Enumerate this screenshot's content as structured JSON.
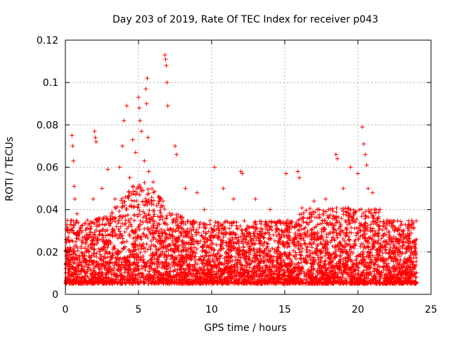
{
  "chart_data": {
    "type": "scatter",
    "title": "Day 203 of 2019, Rate Of TEC Index for receiver p043",
    "xlabel": "GPS time / hours",
    "ylabel": "ROTI / TECUs",
    "xlim": [
      0,
      25
    ],
    "ylim": [
      0,
      0.12
    ],
    "xticks": [
      "0",
      "5",
      "10",
      "15",
      "20",
      "25"
    ],
    "yticks": [
      "0",
      "0.02",
      "0.04",
      "0.06",
      "0.08",
      "0.1",
      "0.12"
    ],
    "xtick_values": [
      0,
      5,
      10,
      15,
      20,
      25
    ],
    "ytick_values": [
      0,
      0.02,
      0.04,
      0.06,
      0.08,
      0.1,
      0.12
    ],
    "grid": true,
    "marker": "+",
    "series": [
      {
        "name": "p043",
        "color": "#ff0000",
        "x": [
          0.3,
          0.4,
          0.45,
          0.5,
          0.55,
          0.6,
          0.65,
          0.8,
          1.0,
          1.5,
          1.9,
          2.0,
          2.05,
          2.1,
          2.5,
          2.9,
          3.4,
          3.7,
          3.9,
          4.0,
          4.2,
          4.4,
          4.6,
          4.8,
          4.9,
          5.0,
          5.05,
          5.1,
          5.2,
          5.4,
          5.5,
          5.55,
          5.6,
          5.65,
          5.7,
          6.0,
          6.5,
          6.8,
          6.85,
          6.9,
          6.95,
          7.0,
          7.5,
          7.6,
          8.2,
          9.0,
          9.5,
          10.2,
          10.8,
          11.5,
          12.0,
          12.1,
          13.0,
          14.0,
          15.1,
          15.2,
          15.9,
          16.0,
          17.0,
          17.8,
          18.0,
          18.5,
          18.6,
          19.0,
          19.5,
          20.0,
          20.3,
          20.4,
          20.5,
          20.6,
          20.7,
          21.0,
          21.5,
          22.0,
          22.5,
          23.0,
          23.5,
          23.9,
          1.2,
          2.7,
          3.2,
          4.3,
          6.2,
          8.6,
          11.0,
          13.6,
          16.4,
          19.2,
          22.3,
          0.9,
          3.0,
          5.8,
          9.8,
          14.5,
          17.4,
          21.8
        ],
        "y": [
          0.025,
          0.033,
          0.075,
          0.07,
          0.063,
          0.051,
          0.045,
          0.038,
          0.03,
          0.035,
          0.045,
          0.077,
          0.074,
          0.072,
          0.05,
          0.059,
          0.045,
          0.06,
          0.07,
          0.082,
          0.089,
          0.055,
          0.073,
          0.067,
          0.05,
          0.093,
          0.088,
          0.082,
          0.077,
          0.063,
          0.097,
          0.09,
          0.102,
          0.074,
          0.058,
          0.053,
          0.045,
          0.113,
          0.111,
          0.108,
          0.1,
          0.089,
          0.07,
          0.066,
          0.05,
          0.048,
          0.04,
          0.06,
          0.05,
          0.045,
          0.058,
          0.057,
          0.045,
          0.04,
          0.057,
          0.035,
          0.058,
          0.055,
          0.044,
          0.045,
          0.04,
          0.066,
          0.064,
          0.05,
          0.06,
          0.057,
          0.079,
          0.071,
          0.066,
          0.061,
          0.05,
          0.048,
          0.04,
          0.035,
          0.032,
          0.03,
          0.03,
          0.025,
          0.018,
          0.022,
          0.028,
          0.035,
          0.03,
          0.022,
          0.02,
          0.018,
          0.024,
          0.02,
          0.016,
          0.012,
          0.015,
          0.013,
          0.01,
          0.008,
          0.012,
          0.009
        ]
      }
    ]
  },
  "colors": {
    "series": "#ff0000",
    "grid": "#a0a0a0",
    "axis": "#000000"
  }
}
